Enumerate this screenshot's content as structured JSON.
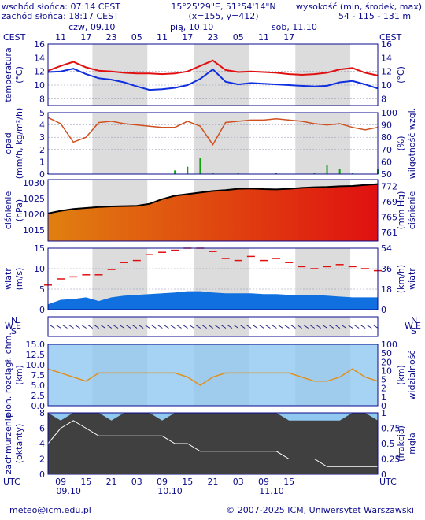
{
  "header": {
    "sunrise": "wschód słońca: 07:14 CEST",
    "sunset": "zachód słońca: 18:17 CEST",
    "coords": "15°25'29\"E, 51°54'14\"N",
    "grid": "(x=155, y=412)",
    "elev_label": "wysokość (min, środek, max)",
    "elev_values": "54 - 115 - 131 m"
  },
  "footer": {
    "email": "meteo@icm.edu.pl",
    "copyright": "© 2007-2025 ICM, Uniwersytet Warszawski"
  },
  "colors": {
    "frame": "#0a0a8c",
    "night_band": "#dcdcdc",
    "temp_max": "#e01010",
    "temp_avg": "#1030e0",
    "humidity": "#d05020",
    "precip": "#10a010",
    "pressure_fill_start": "#e08010",
    "pressure_fill_end": "#e01010",
    "wind_fill": "#1070e0",
    "gust_fill": "#108010",
    "sky_blue": "#90c8f0",
    "cloud_dark": "#404040"
  },
  "time_axis": {
    "top_tz": "CEST",
    "bottom_tz": "UTC",
    "top_days": [
      "czw, 09.10",
      "pią, 10.10",
      "sob, 11.10"
    ],
    "top_hours": [
      "11",
      "17",
      "23",
      "05",
      "11",
      "17",
      "23",
      "05",
      "11",
      "17"
    ],
    "bottom_hours": [
      "09",
      "15",
      "21",
      "03",
      "09",
      "15",
      "21",
      "03",
      "09",
      "15"
    ],
    "bottom_days": [
      "09.10",
      "10.10",
      "11.10"
    ]
  },
  "chart_data": [
    {
      "type": "line",
      "panel": "temperature",
      "left_label": [
        "temperatura",
        "(°C)"
      ],
      "right_label": [
        "(°C)",
        ""
      ],
      "ylim": [
        7,
        16
      ],
      "yticks": [
        "8",
        "10",
        "12",
        "14",
        "16"
      ],
      "series": [
        {
          "values": [
            12.1,
            12.8,
            13.4,
            12.6,
            12.1,
            12.0,
            11.8,
            11.7,
            11.7,
            11.6,
            11.7,
            12.0,
            12.8,
            13.6,
            12.2,
            11.9,
            12.0,
            11.9,
            11.8,
            11.6,
            11.5,
            11.6,
            11.8,
            12.3,
            12.5,
            11.8,
            11.4
          ]
        },
        {
          "values": [
            11.9,
            12.0,
            12.4,
            11.6,
            11.0,
            10.8,
            10.4,
            9.8,
            9.3,
            9.4,
            9.6,
            10.0,
            10.9,
            12.3,
            10.5,
            10.1,
            10.3,
            10.2,
            10.1,
            10.0,
            9.9,
            9.8,
            9.9,
            10.4,
            10.6,
            10.1,
            9.5
          ]
        }
      ],
      "x_hours_utc": [
        6,
        9,
        12,
        15,
        18,
        21,
        24,
        27,
        30,
        33,
        36,
        39,
        42,
        45,
        48,
        51,
        54,
        57,
        60,
        63,
        66,
        69,
        72,
        75,
        78,
        81,
        84
      ]
    },
    {
      "type": "line",
      "panel": "precip_humidity",
      "left_label": [
        "opad",
        "(mm/h, kg/m²/h)"
      ],
      "right_label": [
        "(%)",
        "wilgotność wzgl."
      ],
      "ylim": [
        0,
        5
      ],
      "yticks": [
        "0",
        "1",
        "2",
        "3",
        "4",
        "5"
      ],
      "y2lim": [
        50,
        100
      ],
      "y2ticks": [
        "50",
        "60",
        "70",
        "80",
        "90",
        "100"
      ],
      "humidity": [
        96,
        91,
        76,
        80,
        92,
        93,
        91,
        90,
        89,
        88,
        88,
        93,
        89,
        74,
        92,
        93,
        94,
        94,
        95,
        94,
        93,
        91,
        90,
        91,
        88,
        86,
        88
      ],
      "precip_bars": [
        0.1,
        0,
        0,
        0,
        0,
        0,
        0,
        0,
        0,
        0,
        0.3,
        0.6,
        1.3,
        0.1,
        0,
        0.1,
        0,
        0,
        0.1,
        0,
        0,
        0.1,
        0.7,
        0.4,
        0.1,
        0,
        0.4
      ]
    },
    {
      "type": "area",
      "panel": "pressure",
      "left_label": [
        "ciśnienie",
        "(hPa)"
      ],
      "right_label": [
        "(mm Hg)",
        "ciśnienie"
      ],
      "ylim": [
        1011.5,
        1031
      ],
      "yticks": [
        "1015",
        "1020",
        "1025",
        "1030"
      ],
      "y2ticks": [
        "761",
        "765",
        "769",
        "772"
      ],
      "values": [
        1020.3,
        1021.1,
        1021.7,
        1022.0,
        1022.3,
        1022.5,
        1022.6,
        1022.7,
        1023.3,
        1024.8,
        1025.9,
        1026.4,
        1026.9,
        1027.4,
        1027.7,
        1028.1,
        1028.2,
        1028.0,
        1027.9,
        1028.1,
        1028.4,
        1028.6,
        1028.7,
        1028.9,
        1029.0,
        1029.3,
        1029.6
      ]
    },
    {
      "type": "area",
      "panel": "wind",
      "left_label": [
        "wiatr",
        "(m/s)"
      ],
      "right_label": [
        "(km/h)",
        "wiatr"
      ],
      "ylim": [
        0,
        15
      ],
      "yticks": [
        "0",
        "5",
        "10",
        "15"
      ],
      "y2ticks": [
        "0",
        "18",
        "36",
        "54"
      ],
      "speed": [
        1.3,
        2.4,
        2.6,
        3.0,
        2.1,
        3.0,
        3.4,
        3.6,
        3.8,
        4.0,
        4.2,
        4.5,
        4.5,
        4.2,
        4.0,
        4.0,
        4.0,
        3.8,
        3.8,
        3.6,
        3.6,
        3.6,
        3.4,
        3.2,
        3.0,
        3.0,
        3.0
      ],
      "gusts": [
        6.0,
        7.5,
        8.0,
        8.5,
        8.5,
        9.8,
        11.5,
        12.0,
        13.5,
        14.0,
        14.5,
        15.0,
        15.0,
        14.2,
        12.5,
        12.0,
        13.0,
        12.0,
        12.5,
        11.5,
        10.5,
        10.0,
        10.5,
        11.0,
        10.5,
        10.0,
        9.5
      ]
    },
    {
      "type": "scatter",
      "panel": "wind_direction",
      "left_label": [
        "W",
        "N",
        "S",
        "E"
      ],
      "right_label": [
        "W",
        "N",
        "S",
        "E"
      ],
      "note": "wind direction arrows"
    },
    {
      "type": "line",
      "panel": "cloud_base_visibility",
      "left_label": [
        "pion. rozciągł. chm.",
        "(km)"
      ],
      "right_label": [
        "(km)",
        "widzialność"
      ],
      "ylim": [
        0,
        15
      ],
      "yticks": [
        "0.0",
        "2.5",
        "5.0",
        "7.5",
        "10.0",
        "12.5",
        "15.0"
      ],
      "y2ticks": [
        "0",
        "1",
        "2",
        "5",
        "10",
        "20",
        "50",
        "100"
      ],
      "visibility": [
        9,
        8,
        7,
        6,
        8,
        8,
        8,
        8,
        8,
        8,
        8,
        7,
        5,
        7,
        8,
        8,
        8,
        8,
        8,
        8,
        7,
        6,
        6,
        7,
        9,
        7,
        6
      ]
    },
    {
      "type": "area",
      "panel": "clouds_fog",
      "left_label": [
        "zachmurzenie",
        "(oktanty)"
      ],
      "right_label": [
        "(frakcja)",
        "mgła"
      ],
      "ylim": [
        0,
        8
      ],
      "yticks": [
        "0",
        "2",
        "4",
        "6",
        "8"
      ],
      "y2ticks": [
        "0",
        "0.25",
        "0.5",
        "0.75",
        "1"
      ],
      "low_cloud": [
        4,
        6,
        7,
        6,
        5,
        5,
        5,
        5,
        5,
        5,
        4,
        4,
        3,
        3,
        3,
        3,
        3,
        3,
        3,
        2,
        2,
        2,
        1,
        1,
        1,
        1,
        1
      ],
      "high_cloud": [
        8,
        7,
        8,
        8,
        8,
        7,
        8,
        8,
        8,
        7,
        8,
        8,
        8,
        8,
        8,
        8,
        8,
        8,
        8,
        7,
        7,
        7,
        7,
        7,
        8,
        8,
        7
      ]
    }
  ]
}
